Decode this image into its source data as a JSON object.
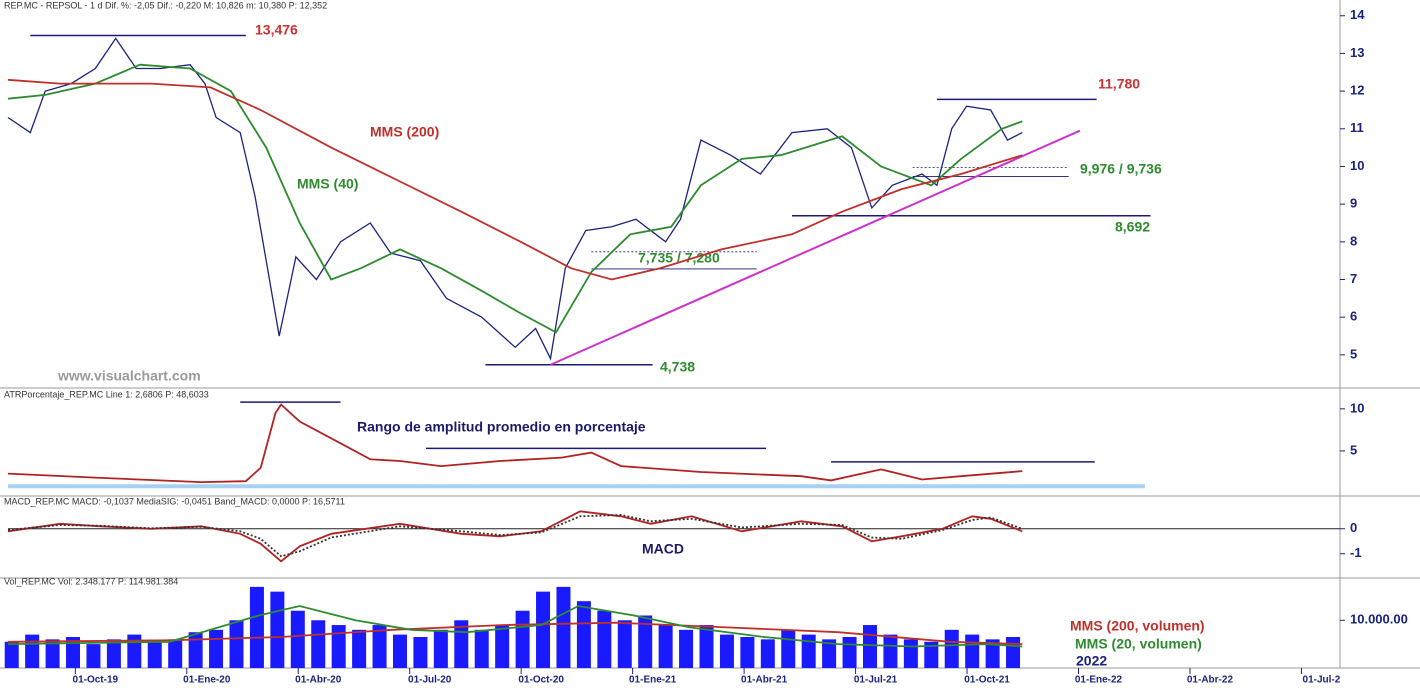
{
  "chart_data": [
    {
      "type": "line",
      "header": "REP.MC - REPSOL - 1 d Dif. %: -2,05 Dif.: -0,220 M: 10,826 m: 10,380 P: 12,352",
      "xlim": [
        -2.35,
        33.5
      ],
      "ylim": [
        4.2,
        14.1
      ],
      "yticks": [
        5,
        6,
        7,
        8,
        9,
        10,
        11,
        12,
        13,
        14
      ],
      "series": [
        {
          "color": "#1a237e",
          "x": [
            -2.35,
            -1.75,
            -1.35,
            -0.65,
            0,
            0.55,
            1.1,
            1.75,
            2.55,
            2.95,
            3.25,
            3.9,
            4.3,
            4.6,
            4.95,
            5.4,
            5.95,
            6.6,
            7.4,
            7.95,
            8.75,
            9.45,
            10.4,
            11.3,
            11.85,
            12.25,
            12.65,
            13.2,
            13.9,
            14.55,
            15.35,
            15.75,
            16.3,
            17.1,
            17.9,
            18.75,
            19.7,
            20.35,
            20.9,
            21.45,
            22.25,
            22.65,
            23.05,
            23.45,
            24.1,
            24.55,
            24.95
          ],
          "values": [
            11.3,
            10.9,
            12.0,
            12.2,
            12.6,
            13.4,
            12.6,
            12.6,
            12.7,
            12.2,
            11.3,
            10.9,
            9.2,
            7.5,
            5.5,
            7.6,
            7.0,
            8.0,
            8.5,
            7.7,
            7.5,
            6.5,
            6.0,
            5.2,
            5.7,
            4.9,
            7.3,
            8.3,
            8.4,
            8.6,
            8.0,
            8.6,
            10.7,
            10.3,
            9.8,
            10.9,
            11.0,
            10.5,
            8.9,
            9.5,
            9.8,
            9.5,
            11.0,
            11.6,
            11.5,
            10.7,
            10.9
          ]
        },
        {
          "name": "MMS (40)",
          "color": "#2e8b2e",
          "x": [
            -2.35,
            -1.35,
            0,
            1.2,
            2.55,
            3.65,
            4.6,
            5.5,
            6.35,
            7.15,
            8.2,
            9.3,
            10.4,
            11.45,
            12.4,
            13.35,
            14.4,
            15.5,
            16.3,
            17.4,
            18.45,
            20.1,
            21.15,
            22.5,
            23.3,
            24.4,
            24.95
          ],
          "values": [
            11.8,
            11.9,
            12.2,
            12.7,
            12.6,
            12.0,
            10.5,
            8.5,
            7.0,
            7.3,
            7.8,
            7.3,
            6.7,
            6.1,
            5.6,
            7.2,
            8.2,
            8.4,
            9.5,
            10.2,
            10.3,
            10.8,
            10.0,
            9.5,
            10.2,
            11.0,
            11.2
          ]
        },
        {
          "name": "MMS (200)",
          "color": "#c0302a",
          "x": [
            -2.35,
            -0.95,
            1.5,
            3.1,
            4.45,
            6.35,
            8.2,
            9.85,
            11.45,
            12.8,
            13.9,
            15.2,
            16.85,
            18.75,
            20.1,
            21.7,
            23.3,
            24.95
          ],
          "values": [
            12.3,
            12.2,
            12.2,
            12.1,
            11.5,
            10.5,
            9.6,
            8.8,
            8.0,
            7.3,
            7.0,
            7.3,
            7.8,
            8.2,
            8.8,
            9.4,
            9.8,
            10.3
          ]
        }
      ],
      "levels": [
        {
          "values": [
            13.476
          ],
          "label": "13,476",
          "x": [
            -1.75,
            4.05
          ],
          "color": "#d03030"
        },
        {
          "values": [
            11.78
          ],
          "label": "11,780",
          "x": [
            22.65,
            26.95
          ],
          "color": "#d03030"
        },
        {
          "values": [
            9.976,
            9.736
          ],
          "label": "9,976 / 9,736",
          "x": [
            22.0,
            26.2
          ],
          "color": "#2e8b2e"
        },
        {
          "values": [
            8.692
          ],
          "label": "8,692",
          "x": [
            18.75,
            28.4
          ],
          "color": "#2e8b2e"
        },
        {
          "values": [
            7.735,
            7.28
          ],
          "label": "7,735 / 7,280",
          "x": [
            13.35,
            17.8
          ],
          "color": "#2e8b2e"
        },
        {
          "values": [
            4.738
          ],
          "label": "4,738",
          "x": [
            10.5,
            15.0
          ],
          "color": "#2e8b2e"
        }
      ],
      "trendline": {
        "x": [
          12.25,
          26.5
        ],
        "y": [
          4.738,
          10.95
        ],
        "color": "#cc33cc"
      },
      "annotations": [
        {
          "text": "www.visualchart.com",
          "color": "#9a9a9a"
        }
      ]
    },
    {
      "type": "line",
      "header": "ATRPorcentaje_REP.MC Line 1: 2,6806 P: 48,6033",
      "xlim": [
        -2.35,
        33.5
      ],
      "ylim": [
        0,
        12
      ],
      "yticks": [
        5,
        10
      ],
      "series": [
        {
          "color": "#b22222",
          "x": [
            -2.35,
            0.15,
            2.85,
            4.05,
            4.45,
            4.85,
            5.0,
            5.5,
            6.35,
            7.4,
            8.2,
            9.3,
            10.9,
            12.55,
            13.35,
            13.6,
            14.15,
            16.3,
            19.0,
            19.8,
            21.15,
            22.25,
            23.3,
            24.95
          ],
          "values": [
            2.3,
            1.8,
            1.3,
            1.4,
            3.0,
            9.5,
            10.5,
            8.5,
            6.5,
            4.0,
            3.8,
            3.2,
            3.8,
            4.2,
            4.8,
            4.3,
            3.2,
            2.5,
            2.0,
            1.5,
            2.8,
            1.6,
            2.0,
            2.6
          ]
        }
      ],
      "levels": [
        {
          "values": [
            10.8
          ],
          "x": [
            3.9,
            6.6
          ],
          "color": "#1a1a7a"
        },
        {
          "values": [
            5.3
          ],
          "x": [
            8.9,
            18.05
          ],
          "color": "#1a1a7a"
        },
        {
          "values": [
            3.7
          ],
          "x": [
            19.8,
            26.9
          ],
          "color": "#1a1a7a"
        },
        {
          "values": [
            0.8
          ],
          "x": [
            -2.35,
            28.25
          ],
          "color": "#a8d0f0",
          "width": 4
        }
      ],
      "annotations": [
        {
          "text": "Rango de amplitud promedio en porcentaje",
          "color": "#1a1a6a"
        }
      ]
    },
    {
      "type": "line",
      "header": "MACD_REP.MC MACD: -0,1037 MediaSIG: -0,0451 Band_MACD: 0,0000 P: 16,5711",
      "xlim": [
        -2.35,
        33.5
      ],
      "ylim": [
        -1.85,
        1.15
      ],
      "yticks": [
        0,
        -1
      ],
      "baseline": 0,
      "series": [
        {
          "color": "#b22222",
          "x": [
            -2.35,
            -0.95,
            0.15,
            1.5,
            2.85,
            3.9,
            4.45,
            5.0,
            5.5,
            6.35,
            8.2,
            9.85,
            10.9,
            12.0,
            13.05,
            14.15,
            14.95,
            16.05,
            17.4,
            19.0,
            20.1,
            20.9,
            21.7,
            22.8,
            23.6,
            24.1,
            24.95
          ],
          "values": [
            -0.1,
            0.2,
            0.1,
            0.0,
            0.1,
            -0.2,
            -0.6,
            -1.3,
            -0.7,
            -0.2,
            0.2,
            -0.2,
            -0.3,
            -0.1,
            0.7,
            0.5,
            0.2,
            0.5,
            -0.1,
            0.3,
            0.1,
            -0.5,
            -0.3,
            0.0,
            0.5,
            0.4,
            -0.1
          ]
        },
        {
          "color": "#333333",
          "dash": true,
          "x": [
            -2.35,
            -0.95,
            0.15,
            1.5,
            2.85,
            3.9,
            4.45,
            5.0,
            5.5,
            6.35,
            8.2,
            9.85,
            10.9,
            12.0,
            13.05,
            14.15,
            14.95,
            16.05,
            17.4,
            19.0,
            20.1,
            20.9,
            21.7,
            22.8,
            23.6,
            24.1,
            24.95
          ],
          "values": [
            -0.05,
            0.15,
            0.12,
            0.02,
            0.08,
            -0.1,
            -0.4,
            -1.1,
            -0.9,
            -0.35,
            0.1,
            -0.1,
            -0.25,
            -0.15,
            0.5,
            0.55,
            0.3,
            0.4,
            0.05,
            0.2,
            0.15,
            -0.35,
            -0.4,
            -0.05,
            0.35,
            0.45,
            0.0
          ]
        }
      ],
      "annotations": [
        {
          "text": "MACD",
          "color": "#1a1a6a"
        }
      ]
    },
    {
      "type": "bar",
      "header": "Vol_REP.MC Vol: 2.348.177 P: 114.981.384",
      "xlim": [
        -2.35,
        33.5
      ],
      "ylim": [
        0,
        17600000
      ],
      "yticks": [
        {
          "value": 10000000,
          "label": "10.000.00"
        }
      ],
      "xticks": [
        {
          "value": 0,
          "label": "01-Oct-19"
        },
        {
          "value": 3,
          "label": "01-Ene-20"
        },
        {
          "value": 6,
          "label": "01-Abr-20"
        },
        {
          "value": 9,
          "label": "01-Jul-20"
        },
        {
          "value": 12,
          "label": "01-Oct-20"
        },
        {
          "value": 15,
          "label": "01-Ene-21"
        },
        {
          "value": 18,
          "label": "01-Abr-21"
        },
        {
          "value": 21,
          "label": "01-Jul-21"
        },
        {
          "value": 24,
          "label": "01-Oct-21"
        },
        {
          "value": 27,
          "label": "01-Ene-22"
        },
        {
          "value": 30,
          "label": "01-Abr-22"
        },
        {
          "value": 33,
          "label": "01-Jul-2"
        }
      ],
      "series": [
        {
          "color": "#1a1aff",
          "x": [
            -2.25,
            -1.7,
            -1.15,
            -0.6,
            -0.05,
            0.5,
            1.05,
            1.6,
            2.15,
            2.7,
            3.25,
            3.8,
            4.35,
            4.9,
            5.45,
            6.0,
            6.55,
            7.1,
            7.65,
            8.2,
            8.75,
            9.3,
            9.85,
            10.4,
            10.95,
            11.5,
            12.05,
            12.6,
            13.15,
            13.7,
            14.25,
            14.8,
            15.35,
            15.9,
            16.45,
            17.0,
            17.55,
            18.1,
            18.65,
            19.2,
            19.75,
            20.3,
            20.85,
            21.4,
            21.95,
            22.5,
            23.05,
            23.6,
            24.15,
            24.7
          ],
          "values": [
            5500000,
            7000000,
            6000000,
            6500000,
            5000000,
            6000000,
            7000000,
            5500000,
            6000000,
            7500000,
            8000000,
            10000000,
            17000000,
            16000000,
            12000000,
            10000000,
            9000000,
            8000000,
            9000000,
            7000000,
            6500000,
            8000000,
            10000000,
            8000000,
            9000000,
            12000000,
            16000000,
            17000000,
            14000000,
            12000000,
            10000000,
            11000000,
            9000000,
            8000000,
            9000000,
            7000000,
            6500000,
            6000000,
            8000000,
            7000000,
            6000000,
            6500000,
            9000000,
            7000000,
            6000000,
            5500000,
            8000000,
            7000000,
            6000000,
            6500000
          ]
        },
        {
          "name": "MMS (200, volumen)",
          "type": "line",
          "color": "#c0302a",
          "x": [
            -2.35,
            2,
            5,
            8,
            11,
            14,
            17,
            20,
            23,
            24.95
          ],
          "values": [
            5500000,
            5800000,
            6500000,
            8000000,
            9000000,
            9500000,
            8500000,
            7500000,
            5500000,
            5000000
          ]
        },
        {
          "name": "MMS (20, volumen)",
          "type": "line",
          "color": "#2e8b2e",
          "x": [
            -2.35,
            2,
            4.4,
            5.5,
            7,
            8.5,
            10,
            12,
            13,
            14.5,
            16,
            18,
            20,
            22,
            24,
            24.95
          ],
          "values": [
            5000000,
            5500000,
            11000000,
            13000000,
            10000000,
            8000000,
            7500000,
            9000000,
            13000000,
            11000000,
            8500000,
            6500000,
            5000000,
            4500000,
            5000000,
            4500000
          ]
        }
      ],
      "annotations": [
        {
          "text": "2022",
          "color": "#1a237e"
        }
      ]
    }
  ]
}
